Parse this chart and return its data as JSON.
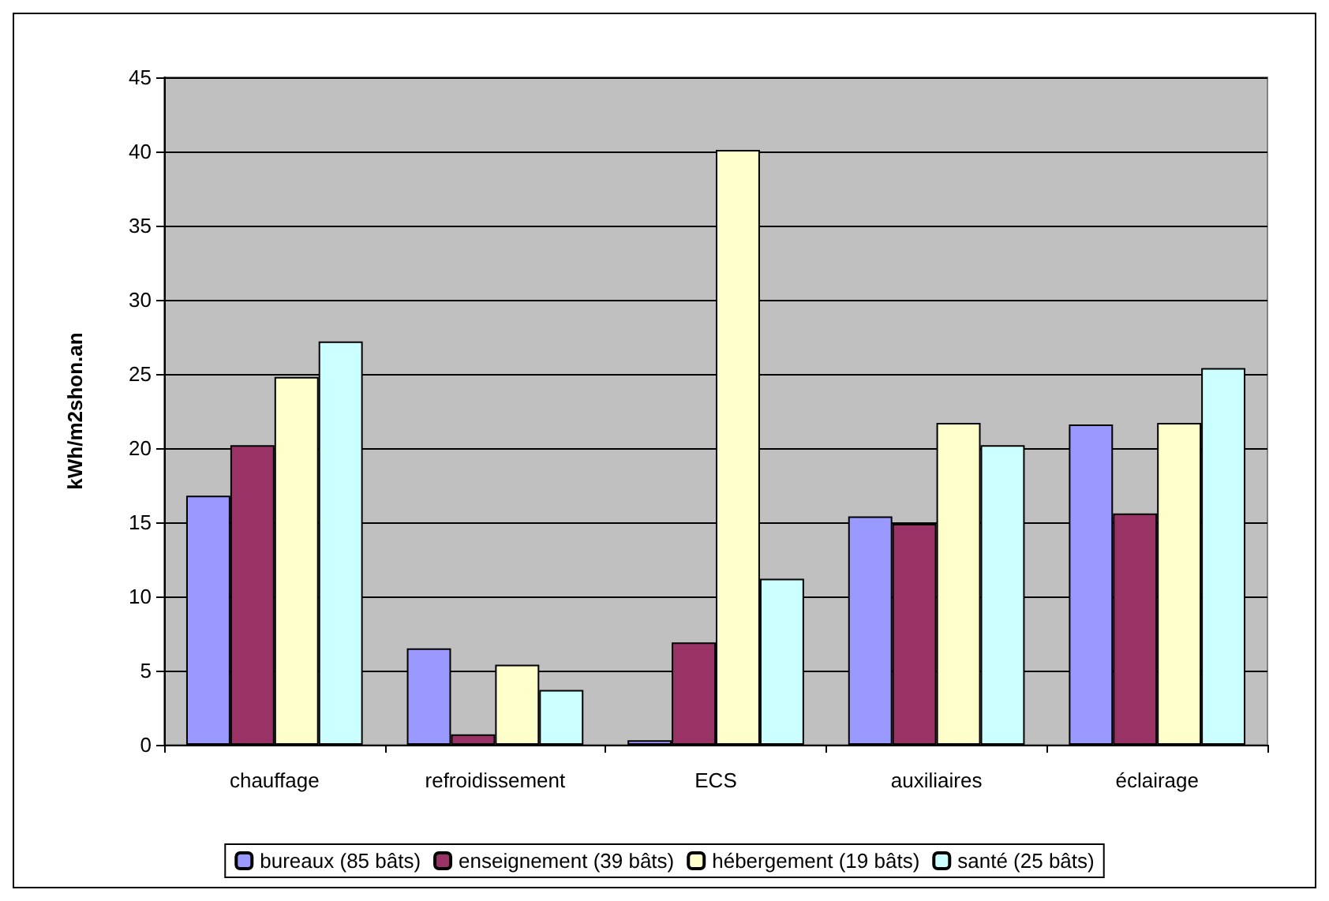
{
  "chart_data": {
    "type": "bar",
    "ylabel": "kWh/m2shon.an",
    "categories": [
      "chauffage",
      "refroidissement",
      "ECS",
      "auxiliaires",
      "éclairage"
    ],
    "series": [
      {
        "name": "bureaux (85 bâts)",
        "color": "#9999ff",
        "values": [
          16.8,
          6.5,
          0.3,
          15.4,
          21.6
        ]
      },
      {
        "name": "enseignement (39 bâts)",
        "color": "#993366",
        "values": [
          20.2,
          0.7,
          6.9,
          14.9,
          15.6
        ]
      },
      {
        "name": "hébergement (19 bâts)",
        "color": "#ffffcc",
        "values": [
          24.8,
          5.4,
          40.1,
          21.7,
          21.7
        ]
      },
      {
        "name": "santé (25 bâts)",
        "color": "#ccffff",
        "values": [
          27.2,
          3.7,
          11.2,
          20.2,
          25.4
        ]
      }
    ],
    "ylim": [
      0,
      45
    ],
    "yticks": [
      0,
      5,
      10,
      15,
      20,
      25,
      30,
      35,
      40,
      45
    ],
    "grid": "y",
    "legend": "bottom"
  }
}
